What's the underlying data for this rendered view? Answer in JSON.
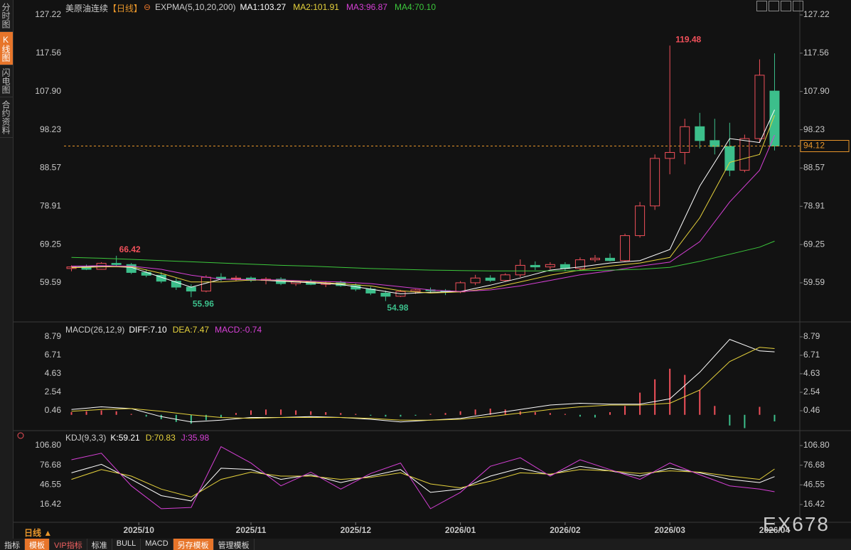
{
  "sidebar": {
    "tabs": [
      "分时图",
      "K线图",
      "闪电图",
      "合约资料"
    ]
  },
  "toolbar": {
    "period": "日线 ▲",
    "buttons": [
      "指标",
      "模板",
      "VIP指标",
      "标准",
      "BULL",
      "MACD",
      "另存模板",
      "管理模板"
    ],
    "watermark": "EX678"
  },
  "chart_data": [
    {
      "type": "candlestick",
      "title": "美原油连续",
      "period": "【日线】",
      "indicator": "EXPMA(5,10,20,200)",
      "xlim": [
        -0.5,
        47.5
      ],
      "ylim": [
        50.26,
        130.09
      ],
      "yticks": [
        127.22,
        117.56,
        {
          "value": 107.9,
          "label": "107.90"
        },
        98.23,
        88.57,
        78.91,
        69.25,
        59.59
      ],
      "up_color": "#f0505a",
      "down_color": "#3cbf8b",
      "grid": false,
      "open": [
        63.2,
        63.6,
        63.0,
        64.5,
        64.2,
        62.2,
        61.5,
        60.0,
        58.5,
        57.5,
        61.0,
        60.6,
        60.8,
        60.2,
        60.5,
        59.4,
        59.8,
        59.2,
        59.6,
        58.9,
        58.0,
        57.0,
        56.2,
        57.4,
        57.8,
        57.6,
        57.3,
        59.6,
        60.8,
        60.2,
        61.6,
        64.0,
        63.6,
        64.2,
        63.2,
        65.4,
        65.8,
        65.2,
        71.5,
        79.0,
        91.0,
        92.5,
        99.0,
        95.5,
        94.0,
        88.0,
        96.0,
        108.0
      ],
      "high": [
        64.0,
        64.2,
        64.8,
        66.42,
        64.6,
        63.0,
        62.3,
        60.8,
        59.2,
        61.5,
        62.0,
        61.4,
        61.2,
        61.0,
        61.0,
        60.2,
        60.5,
        60.0,
        60.1,
        59.4,
        58.6,
        57.6,
        57.8,
        58.0,
        58.4,
        58.0,
        60.0,
        61.6,
        61.5,
        62.0,
        65.5,
        65.0,
        64.8,
        64.8,
        66.0,
        66.6,
        67.0,
        72.0,
        80.0,
        92.0,
        119.48,
        101.0,
        102.5,
        101.0,
        100.0,
        97.0,
        116.0,
        117.5
      ],
      "low": [
        62.5,
        62.8,
        62.9,
        63.8,
        61.8,
        61.0,
        59.5,
        57.8,
        55.96,
        57.2,
        60.0,
        60.0,
        59.8,
        59.2,
        59.0,
        58.8,
        59.0,
        58.5,
        58.6,
        57.5,
        56.5,
        54.98,
        56.0,
        56.8,
        57.0,
        56.5,
        57.0,
        59.0,
        59.8,
        60.0,
        61.0,
        62.8,
        63.0,
        62.5,
        62.8,
        64.8,
        65.0,
        65.0,
        71.0,
        78.0,
        87.0,
        89.5,
        93.5,
        92.0,
        86.5,
        87.5,
        95.0,
        93.0
      ],
      "close": [
        63.6,
        63.0,
        64.5,
        64.2,
        62.2,
        61.5,
        60.0,
        58.5,
        57.5,
        61.0,
        60.6,
        60.8,
        60.2,
        60.5,
        59.4,
        59.8,
        59.2,
        59.6,
        58.9,
        58.0,
        57.0,
        56.2,
        57.4,
        57.8,
        57.6,
        57.3,
        59.6,
        60.8,
        60.2,
        61.6,
        64.0,
        63.6,
        64.2,
        63.2,
        65.4,
        65.8,
        65.2,
        71.5,
        79.0,
        91.0,
        92.5,
        99.0,
        95.5,
        94.0,
        88.0,
        96.0,
        112.0,
        94.12
      ],
      "series": [
        {
          "name": "MA1:103.27",
          "color": "#ffffff",
          "x": [
            0,
            2,
            4,
            6,
            8,
            10,
            12,
            14,
            16,
            18,
            20,
            22,
            24,
            26,
            28,
            30,
            32,
            34,
            36,
            38,
            40,
            42,
            44,
            46,
            47
          ],
          "values": [
            63.5,
            63.8,
            63.5,
            61.0,
            58.5,
            60.5,
            60.4,
            60.0,
            59.6,
            59.2,
            58.0,
            56.8,
            57.2,
            57.4,
            59.0,
            60.8,
            62.8,
            63.6,
            64.6,
            65.2,
            68.0,
            84.0,
            96.0,
            95.0,
            103.27
          ]
        },
        {
          "name": "MA2:101.91",
          "color": "#e6d23c",
          "x": [
            0,
            2,
            4,
            6,
            8,
            10,
            12,
            14,
            16,
            18,
            20,
            22,
            24,
            26,
            28,
            30,
            32,
            34,
            36,
            38,
            40,
            42,
            44,
            46,
            47
          ],
          "values": [
            63.4,
            63.6,
            63.7,
            62.0,
            59.8,
            59.8,
            60.3,
            60.2,
            59.8,
            59.4,
            58.8,
            57.6,
            57.0,
            57.3,
            58.2,
            59.8,
            61.5,
            62.8,
            63.8,
            64.6,
            66.0,
            76.0,
            90.0,
            92.0,
            101.91
          ]
        },
        {
          "name": "MA3:96.87",
          "color": "#d640d6",
          "x": [
            0,
            2,
            4,
            6,
            8,
            10,
            12,
            14,
            16,
            18,
            20,
            22,
            24,
            26,
            28,
            30,
            32,
            34,
            36,
            38,
            40,
            42,
            44,
            46,
            47
          ],
          "values": [
            63.8,
            63.9,
            63.8,
            63.0,
            61.5,
            60.5,
            60.4,
            60.3,
            60.0,
            59.8,
            59.4,
            58.6,
            57.8,
            57.4,
            57.8,
            58.8,
            60.2,
            61.6,
            62.6,
            63.8,
            64.8,
            70.0,
            80.0,
            88.0,
            96.87
          ]
        },
        {
          "name": "MA4:70.10",
          "color": "#3cc83c",
          "x": [
            0,
            2,
            4,
            6,
            8,
            10,
            12,
            14,
            16,
            18,
            20,
            22,
            24,
            26,
            28,
            30,
            32,
            34,
            36,
            38,
            40,
            42,
            44,
            46,
            47
          ],
          "values": [
            66.0,
            65.8,
            65.5,
            65.2,
            64.9,
            64.6,
            64.3,
            64.0,
            63.8,
            63.5,
            63.2,
            63.0,
            62.8,
            62.7,
            62.6,
            62.6,
            62.6,
            62.7,
            62.8,
            63.0,
            63.5,
            65.0,
            66.8,
            68.6,
            70.1
          ]
        }
      ]
    },
    {
      "type": "macd",
      "title": "MACD(26,12,9)",
      "xlim": [
        -0.5,
        47.5
      ],
      "ylim": [
        -1.54,
        10.23
      ],
      "yticks": [
        8.79,
        6.71,
        4.63,
        2.54,
        0.46
      ],
      "series": [
        {
          "name": "DIFF:7.10",
          "color": "#ffffff",
          "x": [
            0,
            2,
            4,
            6,
            8,
            10,
            12,
            14,
            16,
            18,
            20,
            22,
            24,
            26,
            28,
            30,
            32,
            34,
            36,
            38,
            40,
            42,
            44,
            46,
            47
          ],
          "values": [
            0.6,
            0.9,
            0.7,
            -0.2,
            -0.8,
            -0.6,
            -0.3,
            -0.3,
            -0.2,
            -0.3,
            -0.5,
            -0.8,
            -0.6,
            -0.4,
            0.1,
            0.6,
            1.1,
            1.3,
            1.2,
            1.2,
            1.8,
            4.8,
            8.5,
            7.2,
            7.1
          ]
        },
        {
          "name": "DEA:7.47",
          "color": "#e6d23c",
          "x": [
            0,
            2,
            4,
            6,
            8,
            10,
            12,
            14,
            16,
            18,
            20,
            22,
            24,
            26,
            28,
            30,
            32,
            34,
            36,
            38,
            40,
            42,
            44,
            46,
            47
          ],
          "values": [
            0.4,
            0.6,
            0.7,
            0.4,
            0.0,
            -0.3,
            -0.4,
            -0.3,
            -0.3,
            -0.3,
            -0.4,
            -0.6,
            -0.6,
            -0.5,
            -0.2,
            0.2,
            0.6,
            0.9,
            1.1,
            1.1,
            1.3,
            2.8,
            6.0,
            7.6,
            7.47
          ]
        }
      ],
      "histogram": {
        "name": "MACD:-0.74",
        "color": "#d640d6",
        "up_color": "#f0505a",
        "down_color": "#3cbf8b",
        "values": [
          0.3,
          0.4,
          0.5,
          0.4,
          0.1,
          -0.2,
          -0.5,
          -0.8,
          -1.0,
          -0.6,
          -0.3,
          0.2,
          0.5,
          0.6,
          0.6,
          0.5,
          0.4,
          0.3,
          0.2,
          0.1,
          -0.1,
          -0.2,
          -0.2,
          -0.1,
          0.1,
          0.2,
          0.4,
          0.6,
          0.7,
          0.6,
          0.4,
          0.3,
          0.2,
          0.1,
          -0.2,
          -0.3,
          0.3,
          1.0,
          2.5,
          4.0,
          5.2,
          4.5,
          2.8,
          1.0,
          -1.2,
          -1.5,
          0.9,
          -0.74
        ]
      }
    },
    {
      "type": "line",
      "title": "KDJ(9,3,3)",
      "xlim": [
        -0.5,
        47.5
      ],
      "ylim": [
        -5.36,
        123.1
      ],
      "yticks": [
        {
          "value": 106.8,
          "label": "106.80"
        },
        76.68,
        46.55,
        16.42
      ],
      "xticks": [
        {
          "value": 4.5,
          "label": "2025/10"
        },
        {
          "value": 12,
          "label": "2025/11"
        },
        {
          "value": 19,
          "label": "2025/12"
        },
        {
          "value": 26,
          "label": "2026/01"
        },
        {
          "value": 33,
          "label": "2026/02"
        },
        {
          "value": 40,
          "label": "2026/03"
        },
        {
          "value": 47,
          "label": "2026/04"
        }
      ],
      "series": [
        {
          "name": "K:59.21",
          "color": "#ffffff",
          "x": [
            0,
            2,
            4,
            6,
            8,
            10,
            12,
            14,
            16,
            18,
            20,
            22,
            24,
            26,
            28,
            30,
            32,
            34,
            36,
            38,
            40,
            42,
            44,
            46,
            47
          ],
          "values": [
            65,
            78,
            55,
            30,
            22,
            72,
            70,
            55,
            62,
            50,
            60,
            70,
            35,
            40,
            60,
            72,
            62,
            75,
            68,
            60,
            72,
            65,
            55,
            50,
            59.21
          ]
        },
        {
          "name": "D:70.83",
          "color": "#e6d23c",
          "x": [
            0,
            2,
            4,
            6,
            8,
            10,
            12,
            14,
            16,
            18,
            20,
            22,
            24,
            26,
            28,
            30,
            32,
            34,
            36,
            38,
            40,
            42,
            44,
            46,
            47
          ],
          "values": [
            55,
            70,
            60,
            40,
            28,
            55,
            66,
            60,
            60,
            55,
            58,
            65,
            48,
            42,
            52,
            65,
            63,
            70,
            68,
            64,
            68,
            66,
            60,
            55,
            70.83
          ]
        },
        {
          "name": "J:35.98",
          "color": "#d640d6",
          "x": [
            0,
            2,
            4,
            6,
            8,
            10,
            12,
            14,
            16,
            18,
            20,
            22,
            24,
            26,
            28,
            30,
            32,
            34,
            36,
            38,
            40,
            42,
            44,
            46,
            47
          ],
          "values": [
            85,
            95,
            45,
            10,
            12,
            105,
            80,
            45,
            66,
            40,
            64,
            80,
            10,
            35,
            75,
            88,
            60,
            85,
            70,
            55,
            80,
            62,
            45,
            40,
            35.98
          ]
        }
      ]
    }
  ]
}
